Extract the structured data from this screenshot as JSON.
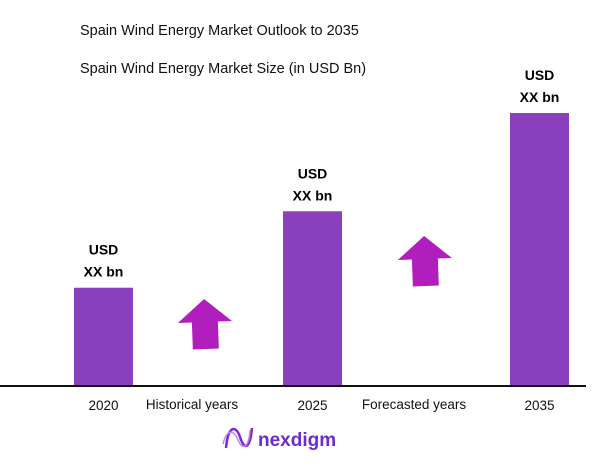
{
  "chart_data": {
    "type": "bar",
    "title": "Spain Wind Energy Market Outlook to 2035",
    "subtitle": "Spain Wind Energy Market Size (in USD Bn)",
    "categories": [
      "2020",
      "2025",
      "2035"
    ],
    "values": [
      36,
      64,
      100
    ],
    "value_note_labels": [
      [
        "USD",
        "XX bn"
      ],
      [
        "USD",
        "XX bn"
      ],
      [
        "USD",
        "XX bn"
      ]
    ],
    "period_labels": [
      "Historical years",
      "Forecasted years"
    ],
    "bar_color": "#8a40bd",
    "arrow_color": "#b01fbd",
    "grid": false,
    "legend": "none"
  },
  "brand": {
    "name": "nexdigm",
    "color": "#6b2bd1"
  }
}
